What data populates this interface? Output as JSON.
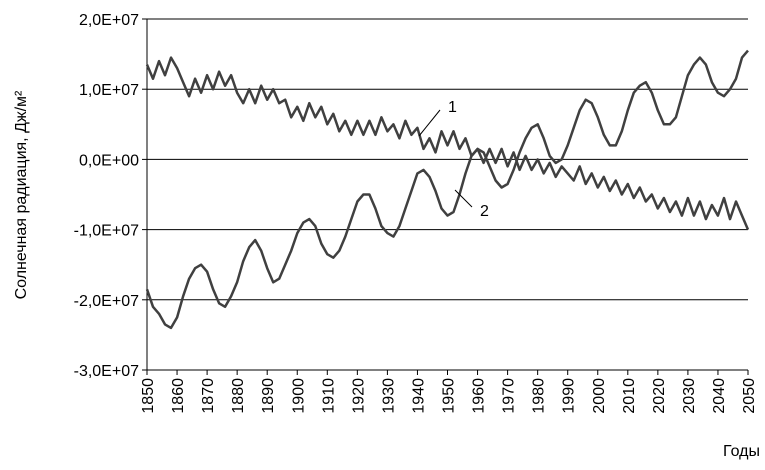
{
  "chart_data": {
    "type": "line",
    "x_label": "Годы",
    "y_label": "Солнечная радиация, Дж/м²",
    "x": [
      1850,
      1852,
      1854,
      1856,
      1858,
      1860,
      1862,
      1864,
      1866,
      1868,
      1870,
      1872,
      1874,
      1876,
      1878,
      1880,
      1882,
      1884,
      1886,
      1888,
      1890,
      1892,
      1894,
      1896,
      1898,
      1900,
      1902,
      1904,
      1906,
      1908,
      1910,
      1912,
      1914,
      1916,
      1918,
      1920,
      1922,
      1924,
      1926,
      1928,
      1930,
      1932,
      1934,
      1936,
      1938,
      1940,
      1942,
      1944,
      1946,
      1948,
      1950,
      1952,
      1954,
      1956,
      1958,
      1960,
      1962,
      1964,
      1966,
      1968,
      1970,
      1972,
      1974,
      1976,
      1978,
      1980,
      1982,
      1984,
      1986,
      1988,
      1990,
      1992,
      1994,
      1996,
      1998,
      2000,
      2002,
      2004,
      2006,
      2008,
      2010,
      2012,
      2014,
      2016,
      2018,
      2020,
      2022,
      2024,
      2026,
      2028,
      2030,
      2032,
      2034,
      2036,
      2038,
      2040,
      2042,
      2044,
      2046,
      2048,
      2050
    ],
    "series": [
      {
        "name": "1",
        "color": "#404040",
        "values": [
          13500000.0,
          11500000.0,
          14000000.0,
          12000000.0,
          14500000.0,
          13000000.0,
          11000000.0,
          9000000.0,
          11500000.0,
          9500000.0,
          12000000.0,
          10000000.0,
          12500000.0,
          10500000.0,
          12000000.0,
          9500000.0,
          8000000.0,
          10000000.0,
          8000000.0,
          10500000.0,
          8500000.0,
          10000000.0,
          8000000.0,
          8500000.0,
          6000000.0,
          7500000.0,
          5500000.0,
          8000000.0,
          6000000.0,
          7500000.0,
          5000000.0,
          6500000.0,
          4000000.0,
          5500000.0,
          3500000.0,
          5500000.0,
          3500000.0,
          5500000.0,
          3500000.0,
          6000000.0,
          4000000.0,
          5000000.0,
          3000000.0,
          5500000.0,
          3500000.0,
          4500000.0,
          1500000.0,
          3000000.0,
          1000000.0,
          4000000.0,
          2000000.0,
          4000000.0,
          1500000.0,
          3000000.0,
          500000.0,
          1500000.0,
          -500000.0,
          1500000.0,
          -500000.0,
          1500000.0,
          -1000000.0,
          1000000.0,
          -1500000.0,
          500000.0,
          -1500000.0,
          0,
          -2000000.0,
          -500000.0,
          -2500000.0,
          -1000000.0,
          -2000000.0,
          -3000000.0,
          -1000000.0,
          -3500000.0,
          -2000000.0,
          -4000000.0,
          -2500000.0,
          -4500000.0,
          -3000000.0,
          -5000000.0,
          -3500000.0,
          -5500000.0,
          -4000000.0,
          -6000000.0,
          -5000000.0,
          -7000000.0,
          -5500000.0,
          -7500000.0,
          -6000000.0,
          -8000000.0,
          -5500000.0,
          -8000000.0,
          -6000000.0,
          -8500000.0,
          -6500000.0,
          -8000000.0,
          -5500000.0,
          -8500000.0,
          -6000000.0,
          -8000000.0,
          -10000000.0
        ]
      },
      {
        "name": "2",
        "color": "#404040",
        "values": [
          -18500000.0,
          -21000000.0,
          -22000000.0,
          -23500000.0,
          -24000000.0,
          -22500000.0,
          -19500000.0,
          -17000000.0,
          -15500000.0,
          -15000000.0,
          -16000000.0,
          -18500000.0,
          -20500000.0,
          -21000000.0,
          -19500000.0,
          -17500000.0,
          -14500000.0,
          -12500000.0,
          -11500000.0,
          -13000000.0,
          -15500000.0,
          -17500000.0,
          -17000000.0,
          -15000000.0,
          -13000000.0,
          -10500000.0,
          -9000000.0,
          -8500000.0,
          -9500000.0,
          -12000000.0,
          -13500000.0,
          -14000000.0,
          -13000000.0,
          -11000000.0,
          -8500000.0,
          -6000000.0,
          -5000000.0,
          -5000000.0,
          -7000000.0,
          -9500000.0,
          -10500000.0,
          -11000000.0,
          -9500000.0,
          -7000000.0,
          -4500000.0,
          -2000000.0,
          -1500000.0,
          -2500000.0,
          -4500000.0,
          -7000000.0,
          -8000000.0,
          -7500000.0,
          -5000000.0,
          -2000000.0,
          500000.0,
          1500000.0,
          1000000.0,
          -1000000.0,
          -3000000.0,
          -4000000.0,
          -3500000.0,
          -1500000.0,
          1000000.0,
          3000000.0,
          4500000.0,
          5000000.0,
          3000000.0,
          500000.0,
          -500000.0,
          0,
          2000000.0,
          4500000.0,
          7000000.0,
          8500000.0,
          8000000.0,
          6000000.0,
          3500000.0,
          2000000.0,
          2000000.0,
          4000000.0,
          7000000.0,
          9500000.0,
          10500000.0,
          11000000.0,
          9500000.0,
          7000000.0,
          5000000.0,
          5000000.0,
          6000000.0,
          9000000.0,
          12000000.0,
          13500000.0,
          14500000.0,
          13500000.0,
          11000000.0,
          9500000.0,
          9000000.0,
          10000000.0,
          11500000.0,
          14500000.0,
          15500000.0
        ]
      }
    ],
    "xlim": [
      1850,
      2050
    ],
    "xticks": [
      1850,
      1860,
      1870,
      1880,
      1890,
      1900,
      1910,
      1920,
      1930,
      1940,
      1950,
      1960,
      1970,
      1980,
      1990,
      2000,
      2010,
      2020,
      2030,
      2040,
      2050
    ],
    "ylim": [
      -30000000.0,
      20000000.0
    ],
    "yticks": [
      {
        "value": -30000000.0,
        "label": "-3,0E+07"
      },
      {
        "value": -20000000.0,
        "label": "-2,0E+07"
      },
      {
        "value": -10000000.0,
        "label": "-1,0E+07"
      },
      {
        "value": 0,
        "label": "0,0E+00"
      },
      {
        "value": 10000000.0,
        "label": "1,0E+07"
      },
      {
        "value": 20000000.0,
        "label": "2,0E+07"
      }
    ],
    "grid": true
  }
}
